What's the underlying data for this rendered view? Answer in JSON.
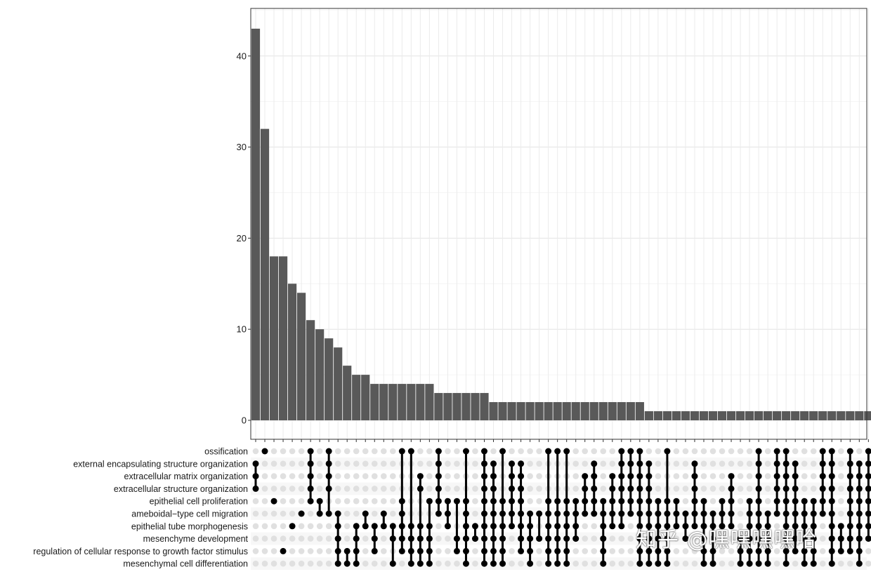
{
  "chart_data": {
    "type": "bar",
    "title": "",
    "xlabel": "",
    "ylabel": "",
    "ylim": [
      0,
      45
    ],
    "yticks": [
      0,
      10,
      20,
      30,
      40
    ],
    "grid": true,
    "bar_color": "#595959",
    "dot_active_color": "#000000",
    "dot_inactive_color": "#e0e0e0",
    "sets": [
      "ossification",
      "external encapsulating structure organization",
      "extracellular matrix organization",
      "extracellular structure organization",
      "epithelial cell proliferation",
      "ameboidal−type cell migration",
      "epithelial tube morphogenesis",
      "mesenchyme development",
      "regulation of cellular response to growth factor stimulus",
      "mesenchymal cell differentiation"
    ],
    "values": [
      43,
      32,
      18,
      18,
      15,
      14,
      11,
      10,
      9,
      8,
      6,
      5,
      5,
      4,
      4,
      4,
      4,
      4,
      4,
      4,
      3,
      3,
      3,
      3,
      3,
      3,
      2,
      2,
      2,
      2,
      2,
      2,
      2,
      2,
      2,
      2,
      2,
      2,
      2,
      2,
      2,
      2,
      2,
      1,
      1,
      1,
      1,
      1,
      1,
      1,
      1,
      1,
      1,
      1,
      1,
      1,
      1,
      1,
      1,
      1,
      1,
      1,
      1,
      1,
      1,
      1,
      1,
      1
    ],
    "intersections": [
      [
        1,
        2,
        3
      ],
      [
        0
      ],
      [
        4
      ],
      [
        8
      ],
      [
        6
      ],
      [
        5
      ],
      [
        0,
        1,
        2,
        3,
        4
      ],
      [
        4,
        5
      ],
      [
        0,
        1,
        2,
        3,
        5
      ],
      [
        5,
        6,
        7,
        8,
        9
      ],
      [
        8,
        9
      ],
      [
        6,
        7,
        8,
        9
      ],
      [
        5,
        6
      ],
      [
        6,
        7,
        8
      ],
      [
        5,
        6
      ],
      [
        6,
        7,
        9
      ],
      [
        0,
        4,
        5,
        6,
        7,
        8
      ],
      [
        0,
        6,
        7,
        8,
        9
      ],
      [
        2,
        3,
        6,
        7,
        8,
        9
      ],
      [
        4,
        6,
        7,
        8,
        9
      ],
      [
        0,
        1,
        2,
        3,
        4,
        5
      ],
      [
        4,
        5,
        6
      ],
      [
        4,
        7,
        8
      ],
      [
        0,
        4,
        5,
        6,
        7,
        8,
        9
      ],
      [
        6,
        7
      ],
      [
        0,
        1,
        2,
        3,
        4,
        5,
        6,
        7,
        8,
        9
      ],
      [
        1,
        2,
        3,
        4,
        5,
        6,
        7,
        8,
        9
      ],
      [
        0,
        4,
        5,
        6,
        7,
        8,
        9
      ],
      [
        1,
        2,
        3,
        4,
        5,
        6
      ],
      [
        1,
        2,
        3,
        4,
        5,
        6,
        7,
        8
      ],
      [
        5,
        6,
        7,
        8,
        9
      ],
      [
        5,
        7
      ],
      [
        0,
        4,
        5,
        6,
        7,
        8,
        9
      ],
      [
        0,
        4,
        5,
        6,
        7,
        8,
        9
      ],
      [
        0,
        4,
        5,
        6,
        7,
        8,
        9
      ],
      [
        4,
        5,
        6,
        7
      ],
      [
        2,
        3,
        4,
        5
      ],
      [
        1,
        2,
        3,
        4,
        5
      ],
      [
        4,
        5,
        6,
        7,
        8,
        9
      ],
      [
        2,
        3,
        4,
        5,
        6
      ],
      [
        0,
        1,
        2,
        3,
        4,
        5,
        6
      ],
      [
        0,
        1,
        2,
        3,
        4,
        5
      ],
      [
        0,
        1,
        2,
        3,
        4,
        5,
        6,
        7,
        8,
        9
      ],
      [
        1,
        2,
        3,
        4,
        5,
        6,
        7,
        8,
        9
      ],
      [
        4,
        5,
        6,
        7,
        8,
        9
      ],
      [
        0,
        4,
        5,
        6,
        7,
        8,
        9
      ],
      [
        4,
        5,
        6
      ],
      [
        5,
        6,
        7
      ],
      [
        1,
        2,
        3,
        4,
        5,
        6
      ],
      [
        4,
        5,
        6,
        7,
        8,
        9
      ],
      [
        5,
        6,
        7,
        8,
        9
      ],
      [
        4,
        5,
        6
      ],
      [
        2,
        3,
        4,
        5,
        6
      ],
      [
        7,
        8,
        9
      ],
      [
        4,
        5,
        6,
        7,
        8,
        9
      ],
      [
        0,
        1,
        2,
        3,
        4,
        5,
        6,
        7,
        8,
        9
      ],
      [
        5,
        6,
        7,
        8,
        9
      ],
      [
        0,
        1,
        2,
        3,
        4,
        5
      ],
      [
        0,
        1,
        2,
        3,
        4,
        5,
        6,
        7,
        8,
        9
      ],
      [
        1,
        2,
        3,
        4,
        5,
        6,
        7,
        8
      ],
      [
        4,
        5,
        6,
        7,
        8,
        9
      ],
      [
        4,
        5,
        6,
        7,
        8,
        9
      ],
      [
        0,
        1,
        2,
        3,
        4,
        5
      ],
      [
        0,
        1,
        2,
        3,
        4,
        5,
        6,
        7,
        8,
        9
      ],
      [
        6,
        7,
        8
      ],
      [
        0,
        1,
        2,
        3,
        4,
        5,
        6,
        7,
        8
      ],
      [
        1,
        2,
        3,
        4,
        5,
        6,
        7,
        8,
        9
      ],
      [
        0,
        1,
        2,
        3,
        4,
        5,
        6,
        7
      ]
    ]
  },
  "watermark": "知乎 @嘿嘿嘿嘿哈"
}
